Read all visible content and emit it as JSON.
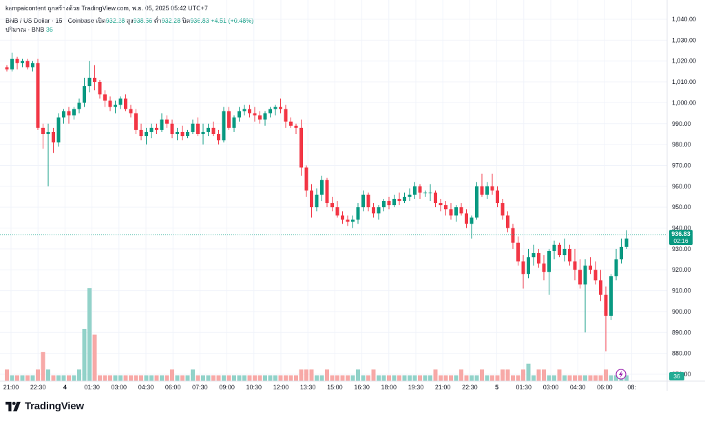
{
  "header": {
    "credit": "kampaicontent ถูกสร้างด้วย TradingView.com, พ.ย. 05, 2025 05:42 UTC+7",
    "symbol": "BNB / US Dollar · 15 · Coinbase",
    "open_label": "เปิด",
    "open_value": "932.28",
    "high_label": "สูง",
    "high_value": "938.56",
    "low_label": "ต่ำ",
    "low_value": "932.28",
    "close_label": "ปิด",
    "close_value": "936.83",
    "change": "+4.51 (+0.48%)",
    "volume_label": "ปริมาณ · BNB",
    "volume_value": "36"
  },
  "footer": {
    "brand": "TradingView"
  },
  "colors": {
    "up": "#089981",
    "down": "#f23645",
    "up_vol": "#92d2c9",
    "down_vol": "#f7a9a7",
    "grid": "#f0f3fa",
    "price_line": "#22ab94"
  },
  "chart_data": {
    "type": "candlestick",
    "price_axis": {
      "min": 870,
      "max": 1040,
      "ticks": [
        870,
        880,
        890,
        900,
        910,
        920,
        930,
        940,
        950,
        960,
        970,
        980,
        990,
        1000,
        1010,
        1020,
        1030,
        1040
      ],
      "labels": [
        "870.00",
        "880.00",
        "890.00",
        "900.00",
        "910.00",
        "920.00",
        "930.00",
        "940.00",
        "950.00",
        "960.00",
        "970.00",
        "980.00",
        "990.00",
        "1,000.00",
        "1,010.00",
        "1,020.00",
        "1,030.00",
        "1,040.00"
      ]
    },
    "time_axis": {
      "labels": [
        "21:00",
        "22:30",
        "4",
        "01:30",
        "03:00",
        "04:30",
        "06:00",
        "07:30",
        "09:00",
        "10:30",
        "12:00",
        "13:30",
        "15:00",
        "16:30",
        "18:00",
        "19:30",
        "21:00",
        "22:30",
        "5",
        "01:30",
        "03:00",
        "04:30",
        "06:00",
        "08:"
      ],
      "bold": [
        "4",
        "5"
      ],
      "first_bar_index": 0,
      "bars_per_label": 6
    },
    "last_price": {
      "value": 936.83,
      "label": "936.83",
      "countdown": "02:16"
    },
    "volume_last_label": "36",
    "interval": "15",
    "candles": [
      [
        1017,
        1018,
        1015,
        1016,
        2
      ],
      [
        1016,
        1024,
        1015,
        1021,
        1
      ],
      [
        1021,
        1022,
        1016,
        1019,
        1
      ],
      [
        1019,
        1021,
        1017,
        1020,
        1
      ],
      [
        1020,
        1021,
        1016,
        1017,
        1
      ],
      [
        1017,
        1020,
        1015,
        1019,
        1
      ],
      [
        1019,
        1021,
        987,
        988,
        2
      ],
      [
        988,
        990,
        978,
        985,
        5
      ],
      [
        985,
        990,
        960,
        986,
        2
      ],
      [
        986,
        988,
        976,
        981,
        1
      ],
      [
        981,
        995,
        979,
        993,
        1
      ],
      [
        993,
        997,
        990,
        996,
        1
      ],
      [
        996,
        998,
        990,
        994,
        1
      ],
      [
        994,
        998,
        992,
        997,
        1
      ],
      [
        997,
        1002,
        995,
        1000,
        2
      ],
      [
        1000,
        1012,
        998,
        1008,
        9
      ],
      [
        1008,
        1020,
        1005,
        1012,
        16
      ],
      [
        1012,
        1018,
        1006,
        1010,
        8
      ],
      [
        1010,
        1011,
        1002,
        1004,
        1
      ],
      [
        1004,
        1006,
        998,
        1001,
        1
      ],
      [
        1001,
        1003,
        996,
        998,
        1
      ],
      [
        998,
        1001,
        995,
        999,
        1
      ],
      [
        999,
        1003,
        997,
        1002,
        1
      ],
      [
        1002,
        1004,
        996,
        997,
        1
      ],
      [
        997,
        999,
        993,
        995,
        1
      ],
      [
        995,
        997,
        985,
        987,
        1
      ],
      [
        987,
        990,
        982,
        984,
        1
      ],
      [
        984,
        988,
        980,
        986,
        1
      ],
      [
        986,
        990,
        983,
        988,
        1
      ],
      [
        988,
        990,
        985,
        987,
        1
      ],
      [
        987,
        995,
        986,
        992,
        1
      ],
      [
        992,
        994,
        988,
        990,
        1
      ],
      [
        990,
        992,
        983,
        985,
        2
      ],
      [
        985,
        988,
        982,
        986,
        1
      ],
      [
        986,
        989,
        982,
        984,
        1
      ],
      [
        984,
        987,
        983,
        986,
        1
      ],
      [
        986,
        992,
        985,
        990,
        2
      ],
      [
        990,
        993,
        984,
        985,
        1
      ],
      [
        985,
        990,
        980,
        986,
        1
      ],
      [
        986,
        990,
        984,
        988,
        1
      ],
      [
        988,
        991,
        984,
        985,
        1
      ],
      [
        985,
        987,
        980,
        982,
        1
      ],
      [
        982,
        998,
        981,
        996,
        1
      ],
      [
        996,
        998,
        987,
        988,
        1
      ],
      [
        988,
        994,
        986,
        993,
        1
      ],
      [
        993,
        998,
        991,
        996,
        1
      ],
      [
        996,
        999,
        994,
        997,
        1
      ],
      [
        997,
        999,
        993,
        995,
        1
      ],
      [
        995,
        998,
        991,
        994,
        1
      ],
      [
        994,
        996,
        990,
        992,
        1
      ],
      [
        992,
        996,
        989,
        995,
        1
      ],
      [
        995,
        998,
        993,
        997,
        1
      ],
      [
        997,
        999,
        994,
        998,
        1
      ],
      [
        998,
        1002,
        995,
        997,
        1
      ],
      [
        997,
        999,
        988,
        991,
        1
      ],
      [
        991,
        993,
        988,
        989,
        1
      ],
      [
        989,
        990,
        985,
        988,
        1
      ],
      [
        988,
        992,
        965,
        969,
        2
      ],
      [
        969,
        970,
        955,
        958,
        2
      ],
      [
        958,
        961,
        945,
        950,
        2
      ],
      [
        950,
        959,
        948,
        956,
        1
      ],
      [
        956,
        965,
        953,
        963,
        1
      ],
      [
        963,
        964,
        950,
        952,
        2
      ],
      [
        952,
        955,
        948,
        950,
        1
      ],
      [
        950,
        953,
        945,
        946,
        1
      ],
      [
        946,
        948,
        942,
        944,
        1
      ],
      [
        944,
        946,
        941,
        943,
        1
      ],
      [
        943,
        946,
        940,
        944,
        1
      ],
      [
        944,
        952,
        942,
        950,
        2
      ],
      [
        950,
        958,
        948,
        956,
        1
      ],
      [
        956,
        957,
        948,
        950,
        1
      ],
      [
        950,
        952,
        945,
        947,
        2
      ],
      [
        947,
        951,
        944,
        950,
        1
      ],
      [
        950,
        954,
        948,
        953,
        1
      ],
      [
        953,
        955,
        949,
        951,
        1
      ],
      [
        951,
        956,
        950,
        954,
        1
      ],
      [
        954,
        957,
        951,
        953,
        1
      ],
      [
        953,
        957,
        952,
        955,
        1
      ],
      [
        955,
        959,
        953,
        956,
        1
      ],
      [
        956,
        962,
        954,
        960,
        1
      ],
      [
        960,
        961,
        954,
        957,
        1
      ],
      [
        957,
        958,
        955,
        957,
        1
      ],
      [
        957,
        961,
        953,
        957,
        1
      ],
      [
        957,
        958,
        950,
        952,
        2
      ],
      [
        952,
        954,
        948,
        951,
        1
      ],
      [
        951,
        953,
        946,
        949,
        1
      ],
      [
        949,
        952,
        944,
        946,
        1
      ],
      [
        946,
        951,
        943,
        950,
        1
      ],
      [
        950,
        952,
        946,
        947,
        2
      ],
      [
        947,
        949,
        940,
        942,
        1
      ],
      [
        942,
        946,
        935,
        945,
        1
      ],
      [
        945,
        962,
        944,
        960,
        1
      ],
      [
        960,
        966,
        955,
        956,
        2
      ],
      [
        956,
        962,
        954,
        960,
        1
      ],
      [
        960,
        966,
        956,
        958,
        1
      ],
      [
        958,
        960,
        950,
        952,
        1
      ],
      [
        952,
        954,
        944,
        946,
        2
      ],
      [
        946,
        948,
        938,
        940,
        2
      ],
      [
        940,
        942,
        930,
        933,
        1
      ],
      [
        933,
        936,
        922,
        924,
        1
      ],
      [
        924,
        927,
        911,
        918,
        2
      ],
      [
        918,
        930,
        916,
        926,
        3
      ],
      [
        926,
        932,
        922,
        928,
        1
      ],
      [
        928,
        930,
        921,
        923,
        2
      ],
      [
        923,
        927,
        915,
        919,
        2
      ],
      [
        919,
        930,
        908,
        929,
        1
      ],
      [
        929,
        934,
        925,
        932,
        1
      ],
      [
        932,
        933,
        926,
        927,
        2
      ],
      [
        927,
        935,
        924,
        930,
        1
      ],
      [
        930,
        932,
        922,
        924,
        1
      ],
      [
        924,
        930,
        915,
        920,
        1
      ],
      [
        920,
        925,
        911,
        913,
        1
      ],
      [
        913,
        925,
        890,
        922,
        1
      ],
      [
        922,
        926,
        918,
        920,
        1
      ],
      [
        920,
        924,
        913,
        915,
        1
      ],
      [
        915,
        920,
        905,
        908,
        1
      ],
      [
        908,
        912,
        881,
        898,
        2
      ],
      [
        898,
        918,
        896,
        917,
        1
      ],
      [
        917,
        930,
        915,
        925,
        1
      ],
      [
        925,
        935,
        923,
        931,
        2
      ],
      [
        931,
        939,
        930,
        935,
        1
      ]
    ]
  }
}
